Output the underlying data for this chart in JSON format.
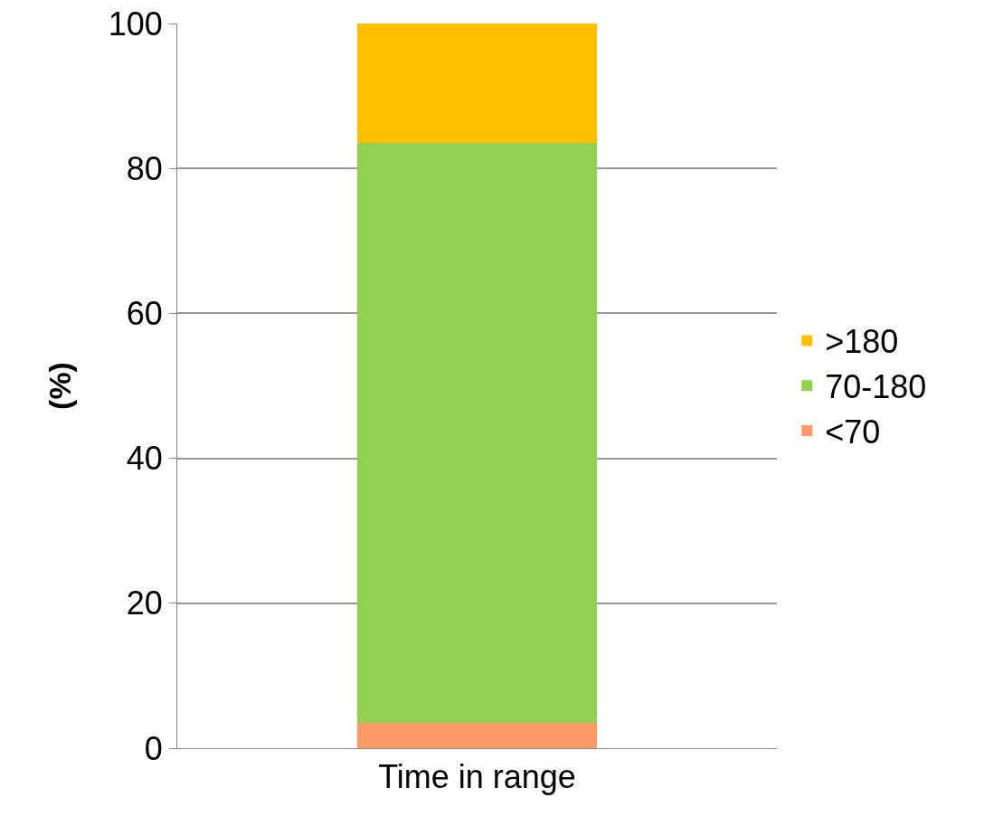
{
  "chart_data": {
    "type": "bar",
    "stacked": true,
    "ylabel": "(%)",
    "categories": [
      "Time in range"
    ],
    "series": [
      {
        "name": "<70",
        "color": "#ff9966",
        "values": [
          3.5
        ]
      },
      {
        "name": "70-180",
        "color": "#92d050",
        "values": [
          80
        ]
      },
      {
        "name": ">180",
        "color": "#ffc000",
        "values": [
          16.5
        ]
      }
    ],
    "ylim": [
      0,
      100
    ],
    "yticks": [
      0,
      20,
      40,
      60,
      80,
      100
    ],
    "grid": "y",
    "legend": "right"
  }
}
